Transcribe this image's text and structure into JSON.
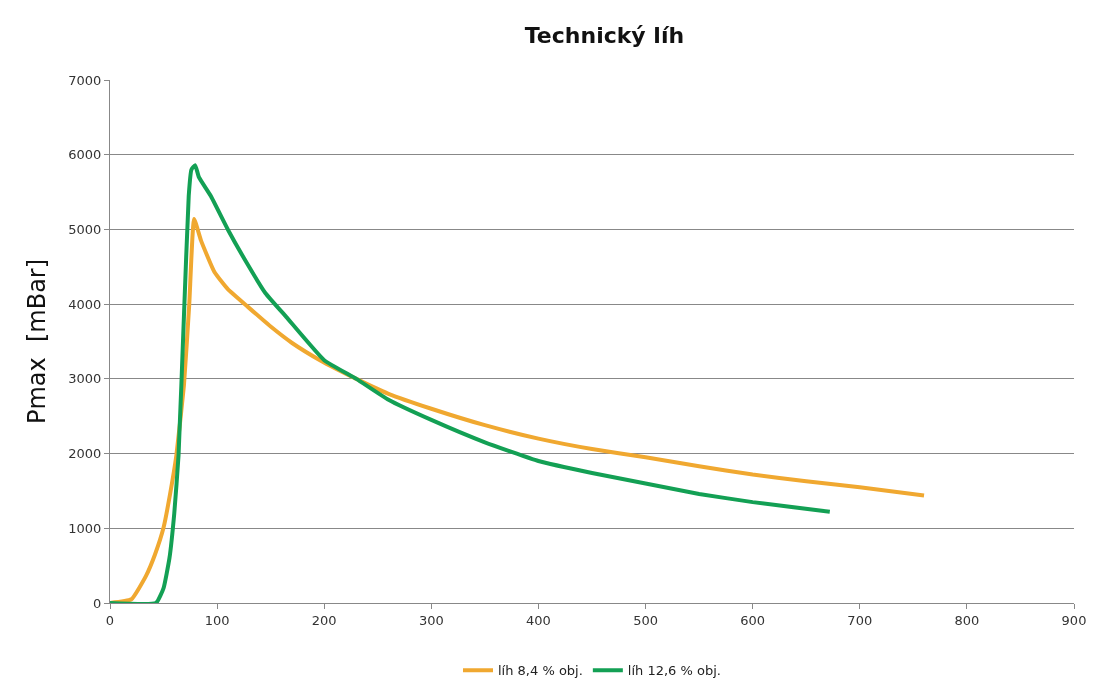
{
  "chart_data": {
    "type": "line",
    "title": "Technický líh",
    "ylabel": "Pmax  [mBar]",
    "xlim": [
      0,
      900
    ],
    "xticks": [
      0,
      100,
      200,
      300,
      400,
      500,
      600,
      700,
      800,
      900
    ],
    "ylim": [
      0,
      7000
    ],
    "yticks": [
      0,
      1000,
      2000,
      3000,
      4000,
      5000,
      6000,
      7000
    ],
    "grid": "y",
    "legend": "bottom",
    "marker": "none",
    "line_style": "solid",
    "series": [
      {
        "name": "líh 8,4 % obj.",
        "color": "#f0a830",
        "x": [
          0,
          20,
          33.5,
          42,
          50,
          56,
          62,
          69,
          74,
          78.5,
          85,
          97.5,
          110,
          129,
          150,
          170,
          196,
          230,
          260,
          300,
          350,
          400,
          450,
          500,
          550,
          600,
          650,
          700,
          760
        ],
        "values": [
          0,
          50,
          360,
          650,
          1010,
          1450,
          1980,
          2910,
          4000,
          5140,
          4850,
          4430,
          4200,
          3960,
          3700,
          3480,
          3250,
          3000,
          2800,
          2600,
          2380,
          2200,
          2060,
          1950,
          1830,
          1720,
          1630,
          1550,
          1440
        ]
      },
      {
        "name": "líh 12,6 % obj.",
        "color": "#13a054",
        "x": [
          0,
          43,
          50,
          55.5,
          60,
          64,
          69,
          73.5,
          76,
          79.5,
          83,
          94,
          110,
          129,
          145,
          164.5,
          200,
          230,
          260,
          300,
          350,
          400,
          450,
          500,
          550,
          600,
          672
        ],
        "values": [
          0,
          0,
          200,
          600,
          1200,
          1980,
          3830,
          5450,
          5800,
          5860,
          5700,
          5450,
          5000,
          4520,
          4150,
          3830,
          3250,
          3000,
          2720,
          2450,
          2150,
          1900,
          1740,
          1600,
          1460,
          1350,
          1220
        ]
      }
    ]
  }
}
